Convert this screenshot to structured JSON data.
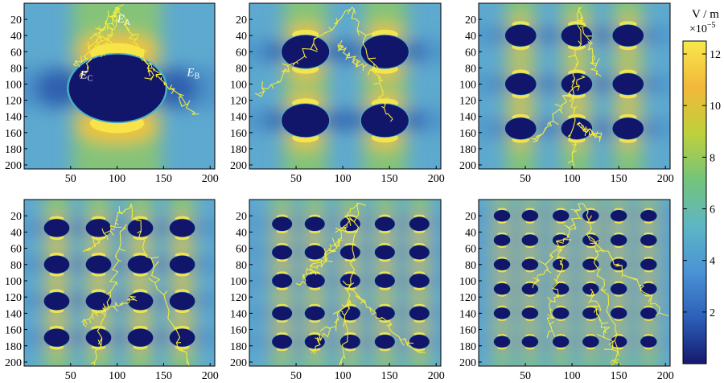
{
  "chart_data": {
    "type": "heatmap",
    "colorbar": {
      "unit_label": "V / m",
      "multiplier_label": "×10",
      "multiplier_exponent": "−5",
      "range": [
        0,
        12.5
      ],
      "tick_values": [
        2,
        4,
        6,
        8,
        10,
        12
      ],
      "tick_labels": [
        "2",
        "4",
        "6",
        "8",
        "10",
        "12"
      ],
      "colors": [
        "#14196e",
        "#2c60b8",
        "#4a93d6",
        "#5eb6c4",
        "#74c47a",
        "#bfd03c",
        "#f2b83a",
        "#f8e84a"
      ]
    },
    "x_ticks": [
      50,
      100,
      150,
      200
    ],
    "y_ticks": [
      20,
      40,
      60,
      80,
      100,
      120,
      140,
      160,
      180,
      200
    ],
    "domain": {
      "x": [
        0,
        205
      ],
      "y": [
        0,
        205
      ]
    },
    "lightning_color": "#f2ea3c",
    "panels": [
      {
        "id": "a",
        "rows": 1,
        "cols": 1,
        "centers_x": [
          100
        ],
        "centers_y": [
          105
        ],
        "radius": 53,
        "annotations": [
          {
            "text": "E",
            "sub": "A",
            "x": 100,
            "y": 24
          },
          {
            "text": "E",
            "sub": "C",
            "x": 60,
            "y": 93
          },
          {
            "text": "E",
            "sub": "B",
            "x": 175,
            "y": 90
          }
        ],
        "strokes": [
          [
            100,
            5,
            55,
            80,
            1
          ],
          [
            100,
            5,
            140,
            90,
            2
          ],
          [
            100,
            5,
            62,
            88,
            3
          ],
          [
            122,
            60,
            185,
            140,
            4
          ],
          [
            100,
            5,
            88,
            65,
            5
          ]
        ]
      },
      {
        "id": "b",
        "rows": 2,
        "cols": 2,
        "centers_x": [
          60,
          145
        ],
        "centers_y": [
          60,
          145
        ],
        "radius": 26,
        "annotations": [],
        "strokes": [
          [
            110,
            5,
            10,
            115,
            6
          ],
          [
            110,
            5,
            150,
            145,
            7
          ],
          [
            95,
            50,
            120,
            80,
            8
          ]
        ]
      },
      {
        "id": "c",
        "rows": 3,
        "cols": 3,
        "centers_x": [
          45,
          105,
          160
        ],
        "centers_y": [
          40,
          100,
          155
        ],
        "radius": 17,
        "annotations": [],
        "strokes": [
          [
            108,
            5,
            100,
            200,
            9
          ],
          [
            110,
            5,
            125,
            90,
            10
          ],
          [
            112,
            90,
            60,
            170,
            11
          ],
          [
            105,
            150,
            130,
            165,
            12
          ]
        ]
      },
      {
        "id": "d",
        "rows": 4,
        "cols": 4,
        "centers_x": [
          35,
          80,
          125,
          170
        ],
        "centers_y": [
          35,
          80,
          125,
          170
        ],
        "radius": 14,
        "annotations": [],
        "strokes": [
          [
            115,
            5,
            70,
            65,
            13
          ],
          [
            115,
            5,
            175,
            205,
            14
          ],
          [
            110,
            30,
            75,
            205,
            15
          ],
          [
            120,
            120,
            60,
            150,
            16
          ]
        ]
      },
      {
        "id": "e",
        "rows": 5,
        "cols": 5,
        "centers_x": [
          35,
          70,
          108,
          145,
          182
        ],
        "centers_y": [
          30,
          65,
          100,
          140,
          175
        ],
        "radius": 11,
        "annotations": [],
        "strokes": [
          [
            115,
            5,
            75,
            85,
            17
          ],
          [
            115,
            5,
            100,
            205,
            18
          ],
          [
            100,
            100,
            180,
            190,
            19
          ],
          [
            108,
            125,
            65,
            190,
            20
          ],
          [
            100,
            50,
            50,
            105,
            21
          ]
        ]
      },
      {
        "id": "f",
        "rows": 6,
        "cols": 6,
        "centers_x": [
          25,
          55,
          88,
          120,
          150,
          182
        ],
        "centers_y": [
          20,
          50,
          80,
          110,
          140,
          175
        ],
        "radius": 9,
        "annotations": [],
        "strokes": [
          [
            112,
            5,
            60,
            105,
            22
          ],
          [
            112,
            5,
            150,
            190,
            23
          ],
          [
            118,
            45,
            200,
            140,
            24
          ],
          [
            120,
            110,
            150,
            205,
            25
          ],
          [
            90,
            60,
            75,
            165,
            26
          ]
        ]
      }
    ]
  }
}
